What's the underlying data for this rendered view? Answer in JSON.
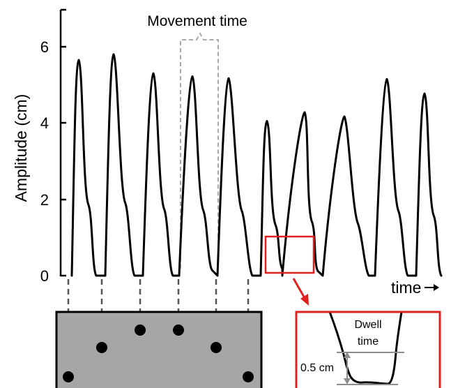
{
  "chart_data": {
    "type": "line",
    "title": "",
    "xlabel": "time",
    "ylabel": "Amplitude (cm)",
    "ylim": [
      0,
      7
    ],
    "yticks": [
      0,
      2,
      4,
      6
    ],
    "grid": false,
    "legend": "none",
    "series": [
      {
        "peaks": [
          {
            "time": 1,
            "amplitude": 5.65
          },
          {
            "time": 2,
            "amplitude": 5.8
          },
          {
            "time": 3,
            "amplitude": 5.3
          },
          {
            "time": 4,
            "amplitude": 5.22
          },
          {
            "time": 5,
            "amplitude": 5.17
          },
          {
            "time": 6,
            "amplitude": 4.05
          },
          {
            "time": 7,
            "amplitude": 4.28
          },
          {
            "time": 8,
            "amplitude": 4.17
          },
          {
            "time": 9,
            "amplitude": 5.15
          },
          {
            "time": 10,
            "amplitude": 4.77
          }
        ]
      }
    ],
    "annotations": {
      "movement_time": "Movement time",
      "time_arrow": "time",
      "inset_title_line1": "Dwell",
      "inset_title_line2": "time",
      "inset_scale": "0.5 cm"
    }
  },
  "colors": {
    "trace": "#000000",
    "highlight": "#e0201f",
    "bracket": "#a8a8a8",
    "panel": "#a6a6a6",
    "dwell_lines": "#8c8c8c"
  }
}
